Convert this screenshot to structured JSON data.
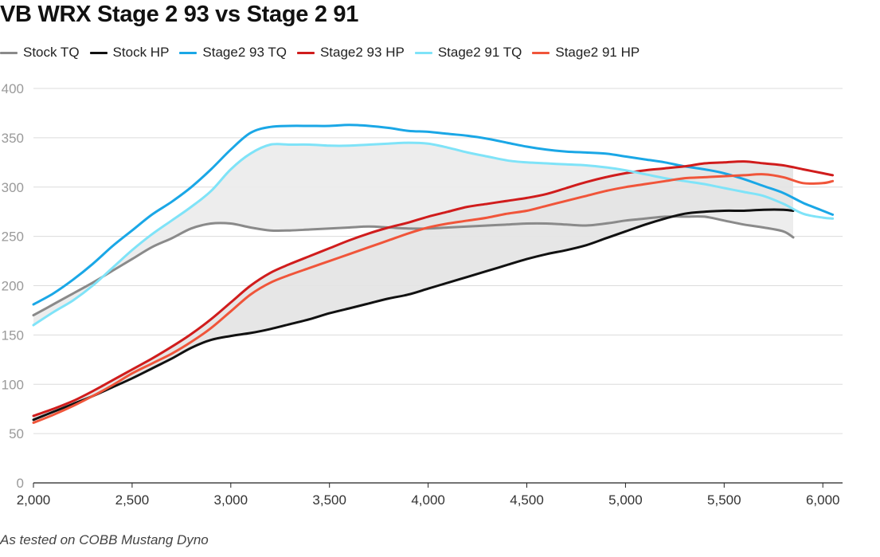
{
  "title": "VB WRX Stage 2 93 vs Stage 2 91",
  "footnote": "As tested on COBB Mustang Dyno",
  "legend": [
    {
      "label": "Stock TQ",
      "color": "#8a8a8a"
    },
    {
      "label": "Stock HP",
      "color": "#111111"
    },
    {
      "label": "Stage2 93 TQ",
      "color": "#1aa7e6"
    },
    {
      "label": "Stage2 93 HP",
      "color": "#d01c1c"
    },
    {
      "label": "Stage2 91 TQ",
      "color": "#7fe3f8"
    },
    {
      "label": "Stage2 91 HP",
      "color": "#f0553a"
    }
  ],
  "chart_data": {
    "type": "line",
    "x_ticks": [
      "2,000",
      "2,500",
      "3,000",
      "3,500",
      "4,000",
      "4,500",
      "5,000",
      "5,500",
      "6,000"
    ],
    "y_ticks": [
      "0",
      "50",
      "100",
      "150",
      "200",
      "250",
      "300",
      "350",
      "400"
    ],
    "xlim": [
      2000,
      6100
    ],
    "ylim": [
      0,
      400
    ],
    "grid": true,
    "legend_position": "top-left",
    "shaded_ranges": [
      {
        "between": [
          "Stage2 91 TQ",
          "Stock TQ"
        ],
        "color": "#ebebeb"
      },
      {
        "between": [
          "Stage2 93 HP",
          "Stock HP"
        ],
        "color": "#e3e3e3"
      }
    ],
    "series": [
      {
        "name": "Stock TQ",
        "color": "#8a8a8a",
        "x": [
          2000,
          2100,
          2200,
          2300,
          2400,
          2500,
          2600,
          2700,
          2800,
          2900,
          3000,
          3100,
          3200,
          3300,
          3400,
          3500,
          3600,
          3700,
          3800,
          3900,
          4000,
          4100,
          4200,
          4300,
          4400,
          4500,
          4600,
          4700,
          4800,
          4900,
          5000,
          5100,
          5200,
          5300,
          5400,
          5500,
          5600,
          5700,
          5800,
          5850
        ],
        "y": [
          170,
          181,
          192,
          203,
          215,
          227,
          239,
          248,
          258,
          263,
          263,
          259,
          256,
          256,
          257,
          258,
          259,
          260,
          259,
          258,
          258,
          259,
          260,
          261,
          262,
          263,
          263,
          262,
          261,
          263,
          266,
          268,
          270,
          270,
          270,
          266,
          262,
          259,
          255,
          249
        ]
      },
      {
        "name": "Stock HP",
        "color": "#111111",
        "x": [
          2000,
          2100,
          2200,
          2300,
          2400,
          2500,
          2600,
          2700,
          2800,
          2900,
          3000,
          3100,
          3200,
          3300,
          3400,
          3500,
          3600,
          3700,
          3800,
          3900,
          4000,
          4100,
          4200,
          4300,
          4400,
          4500,
          4600,
          4700,
          4800,
          4900,
          5000,
          5100,
          5200,
          5300,
          5400,
          5500,
          5600,
          5700,
          5800,
          5850
        ],
        "y": [
          64,
          72,
          80,
          88,
          97,
          106,
          116,
          126,
          137,
          145,
          149,
          152,
          156,
          161,
          166,
          172,
          177,
          182,
          187,
          191,
          197,
          203,
          209,
          215,
          221,
          227,
          232,
          236,
          241,
          248,
          255,
          262,
          268,
          273,
          275,
          276,
          276,
          277,
          277,
          276
        ]
      },
      {
        "name": "Stage2 93 TQ",
        "color": "#1aa7e6",
        "x": [
          2000,
          2100,
          2200,
          2300,
          2400,
          2500,
          2600,
          2700,
          2800,
          2900,
          3000,
          3100,
          3200,
          3300,
          3400,
          3500,
          3600,
          3700,
          3800,
          3900,
          4000,
          4100,
          4200,
          4300,
          4400,
          4500,
          4600,
          4700,
          4800,
          4900,
          5000,
          5100,
          5200,
          5300,
          5400,
          5500,
          5600,
          5700,
          5800,
          5900,
          6000,
          6050
        ],
        "y": [
          181,
          192,
          206,
          222,
          240,
          256,
          272,
          285,
          300,
          318,
          338,
          355,
          361,
          362,
          362,
          362,
          363,
          362,
          360,
          357,
          356,
          354,
          352,
          349,
          345,
          341,
          338,
          336,
          335,
          334,
          331,
          328,
          325,
          321,
          318,
          314,
          308,
          301,
          294,
          284,
          276,
          272
        ]
      },
      {
        "name": "Stage2 93 HP",
        "color": "#d01c1c",
        "x": [
          2000,
          2100,
          2200,
          2300,
          2400,
          2500,
          2600,
          2700,
          2800,
          2900,
          3000,
          3100,
          3200,
          3300,
          3400,
          3500,
          3600,
          3700,
          3800,
          3900,
          4000,
          4100,
          4200,
          4300,
          4400,
          4500,
          4600,
          4700,
          4800,
          4900,
          5000,
          5100,
          5200,
          5300,
          5400,
          5500,
          5600,
          5700,
          5800,
          5900,
          6000,
          6050
        ],
        "y": [
          68,
          75,
          83,
          93,
          104,
          115,
          126,
          138,
          151,
          166,
          183,
          200,
          213,
          222,
          230,
          238,
          246,
          253,
          259,
          264,
          270,
          275,
          280,
          283,
          286,
          289,
          293,
          299,
          305,
          310,
          314,
          317,
          319,
          321,
          324,
          325,
          326,
          324,
          322,
          318,
          314,
          312
        ]
      },
      {
        "name": "Stage2 91 TQ",
        "color": "#7fe3f8",
        "x": [
          2000,
          2100,
          2200,
          2300,
          2400,
          2500,
          2600,
          2700,
          2800,
          2900,
          3000,
          3100,
          3200,
          3300,
          3400,
          3500,
          3600,
          3700,
          3800,
          3900,
          4000,
          4100,
          4200,
          4300,
          4400,
          4500,
          4600,
          4700,
          4800,
          4900,
          5000,
          5100,
          5200,
          5300,
          5400,
          5500,
          5600,
          5700,
          5800,
          5900,
          6000,
          6050
        ],
        "y": [
          160,
          173,
          185,
          200,
          218,
          236,
          252,
          266,
          280,
          296,
          318,
          334,
          343,
          343,
          343,
          342,
          342,
          343,
          344,
          345,
          344,
          340,
          335,
          331,
          327,
          325,
          324,
          323,
          322,
          320,
          317,
          313,
          309,
          306,
          303,
          299,
          295,
          291,
          283,
          273,
          269,
          268
        ]
      },
      {
        "name": "Stage2 91 HP",
        "color": "#f0553a",
        "x": [
          2000,
          2100,
          2200,
          2300,
          2400,
          2500,
          2600,
          2700,
          2800,
          2900,
          3000,
          3100,
          3200,
          3300,
          3400,
          3500,
          3600,
          3700,
          3800,
          3900,
          4000,
          4100,
          4200,
          4300,
          4400,
          4500,
          4600,
          4700,
          4800,
          4900,
          5000,
          5100,
          5200,
          5300,
          5400,
          5500,
          5600,
          5700,
          5800,
          5900,
          6000,
          6050
        ],
        "y": [
          61,
          69,
          78,
          88,
          99,
          111,
          121,
          131,
          143,
          157,
          174,
          191,
          203,
          211,
          218,
          225,
          232,
          239,
          246,
          253,
          259,
          263,
          266,
          269,
          273,
          276,
          281,
          286,
          291,
          296,
          300,
          303,
          306,
          309,
          310,
          311,
          312,
          313,
          310,
          304,
          304,
          306
        ]
      }
    ]
  }
}
